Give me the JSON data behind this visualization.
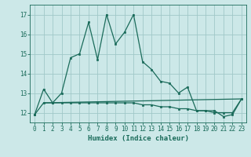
{
  "title": "",
  "xlabel": "Humidex (Indice chaleur)",
  "background_color": "#cce8e8",
  "line_color": "#1a6b5a",
  "grid_color": "#a0c8c8",
  "xlim": [
    -0.5,
    23.5
  ],
  "ylim": [
    11.5,
    17.5
  ],
  "yticks": [
    12,
    13,
    14,
    15,
    16,
    17
  ],
  "xticks": [
    0,
    1,
    2,
    3,
    4,
    5,
    6,
    7,
    8,
    9,
    10,
    11,
    12,
    13,
    14,
    15,
    16,
    17,
    18,
    19,
    20,
    21,
    22,
    23
  ],
  "series1_x": [
    0,
    1,
    2,
    3,
    4,
    5,
    6,
    7,
    8,
    9,
    10,
    11,
    12,
    13,
    14,
    15,
    16,
    17,
    18,
    19,
    20,
    21,
    22,
    23
  ],
  "series1_y": [
    11.9,
    13.2,
    12.5,
    13.0,
    14.8,
    15.0,
    16.6,
    14.7,
    17.0,
    15.5,
    16.1,
    17.0,
    14.6,
    14.2,
    13.6,
    13.5,
    13.0,
    13.3,
    12.1,
    12.1,
    12.1,
    11.8,
    11.9,
    12.7
  ],
  "series2_x": [
    0,
    1,
    2,
    3,
    4,
    5,
    6,
    7,
    8,
    9,
    10,
    11,
    12,
    13,
    14,
    15,
    16,
    17,
    18,
    19,
    20,
    21,
    22,
    23
  ],
  "series2_y": [
    11.9,
    12.5,
    12.5,
    12.5,
    12.5,
    12.5,
    12.5,
    12.5,
    12.5,
    12.5,
    12.5,
    12.5,
    12.4,
    12.4,
    12.3,
    12.3,
    12.2,
    12.2,
    12.1,
    12.1,
    12.0,
    12.0,
    12.0,
    12.7
  ],
  "series3_x": [
    1,
    23
  ],
  "series3_y": [
    12.5,
    12.7
  ]
}
